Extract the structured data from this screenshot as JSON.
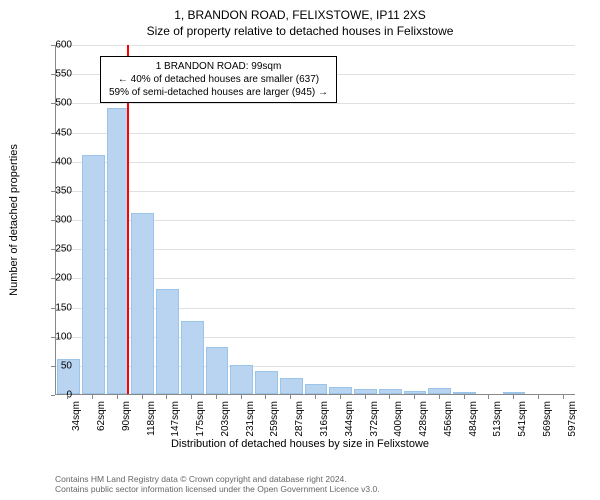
{
  "chart": {
    "type": "histogram",
    "title_line1": "1, BRANDON ROAD, FELIXSTOWE, IP11 2XS",
    "title_line2": "Size of property relative to detached houses in Felixstowe",
    "y_axis_title": "Number of detached properties",
    "x_axis_title": "Distribution of detached houses by size in Felixstowe",
    "background_color": "#ffffff",
    "bar_fill": "#b8d4f0",
    "bar_stroke": "#9cc4e8",
    "grid_color": "#e0e0e0",
    "axis_color": "#888888",
    "ref_line_color": "#ff0000",
    "ylim": [
      0,
      600
    ],
    "ytick_step": 50,
    "y_ticks": [
      0,
      50,
      100,
      150,
      200,
      250,
      300,
      350,
      400,
      450,
      500,
      550,
      600
    ],
    "x_categories": [
      "34sqm",
      "62sqm",
      "90sqm",
      "118sqm",
      "147sqm",
      "175sqm",
      "203sqm",
      "231sqm",
      "259sqm",
      "287sqm",
      "316sqm",
      "344sqm",
      "372sqm",
      "400sqm",
      "428sqm",
      "456sqm",
      "484sqm",
      "513sqm",
      "541sqm",
      "569sqm",
      "597sqm"
    ],
    "values": [
      60,
      410,
      490,
      310,
      180,
      125,
      80,
      50,
      40,
      28,
      18,
      12,
      8,
      8,
      6,
      10,
      4,
      0,
      4,
      0,
      0
    ],
    "ref_line_position": 2.35,
    "info_box": {
      "line1": "1 BRANDON ROAD: 99sqm",
      "line2": "← 40% of detached houses are smaller (637)",
      "line3": "59% of semi-detached houses are larger (945) →"
    }
  },
  "footer": {
    "line1": "Contains HM Land Registry data © Crown copyright and database right 2024.",
    "line2": "Contains public sector information licensed under the Open Government Licence v3.0."
  }
}
